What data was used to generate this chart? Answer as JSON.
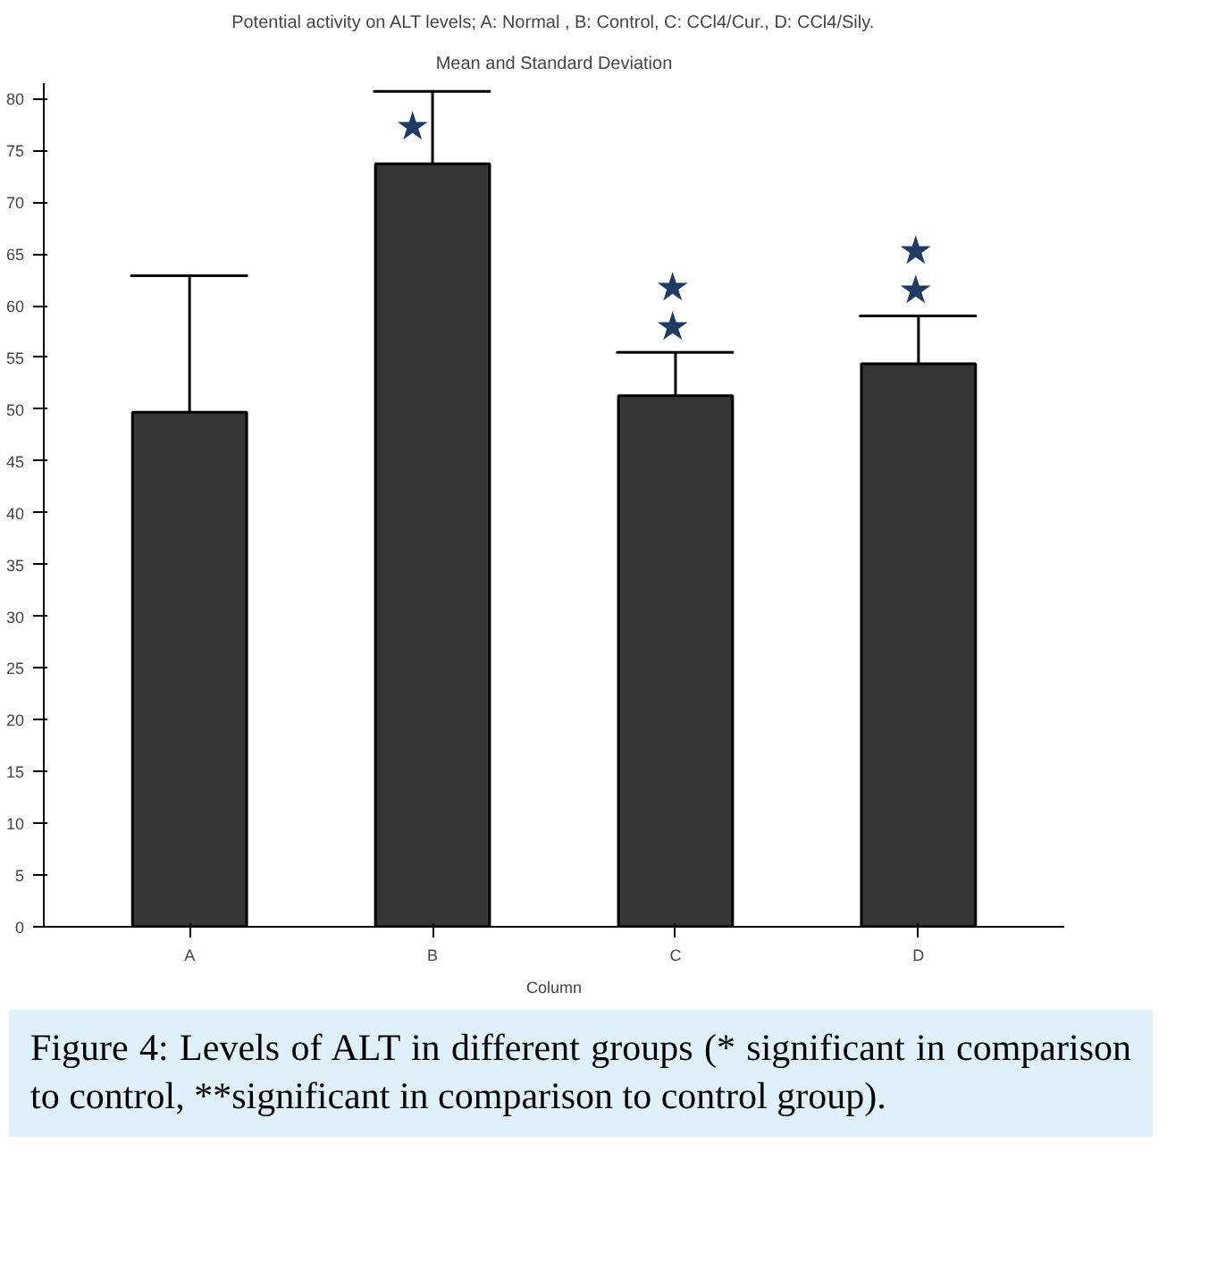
{
  "chart_data": {
    "type": "bar",
    "title": "Potential activity on ALT levels; A: Normal , B: Control, C: CCl4/Cur., D: CCl4/Sily.",
    "subtitle": "Mean and Standard Deviation",
    "xlabel": "Column",
    "categories": [
      "A",
      "B",
      "C",
      "D"
    ],
    "values": [
      49.7,
      73.7,
      51.3,
      54.4
    ],
    "errors": [
      [
        49.7,
        62.9
      ],
      [
        73.7,
        80.7
      ],
      [
        51.3,
        55.5
      ],
      [
        54.4,
        59.0
      ]
    ],
    "color": "#353535",
    "ylim": [
      0,
      81.5
    ],
    "yticks": [
      0,
      5,
      10,
      15,
      20,
      25,
      30,
      35,
      40,
      45,
      50,
      55,
      60,
      65,
      70,
      75,
      80
    ],
    "grid": false,
    "value_labels": [
      null,
      "★",
      "★★",
      "★★"
    ],
    "annotations": [
      "Figure 4: Levels of ALT in different groups (* significant in comparison to control, **significant in comparison to control group)."
    ]
  }
}
